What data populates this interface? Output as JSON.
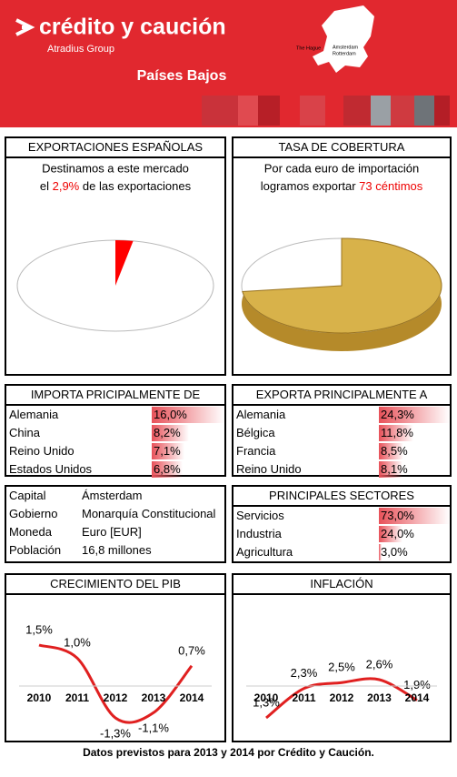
{
  "header": {
    "brand": "crédito y caución",
    "group": "Atradius Group",
    "country": "Países Bajos",
    "map_labels": [
      "The Hague",
      "Amsterdam",
      "Rotterdam"
    ]
  },
  "chart_data": [
    {
      "type": "pie",
      "title": "EXPORTACIONES ESPAÑOLAS",
      "text": [
        "Destinamos a este mercado",
        "el",
        "de las exportaciones"
      ],
      "values": [
        2.9
      ],
      "value_labels": [
        "2,9%"
      ],
      "color": "#ff0000"
    },
    {
      "type": "pie",
      "title": "TASA DE COBERTURA",
      "text": [
        "Por cada euro de importación",
        "logramos exportar"
      ],
      "values": [
        73
      ],
      "value_labels": [
        "73 céntimos"
      ],
      "color": "#d8b24a"
    },
    {
      "type": "bar",
      "title": "IMPORTA PRICIPALMENTE DE",
      "categories": [
        "Alemania",
        "China",
        "Reino Unido",
        "Estados Unidos"
      ],
      "values": [
        16.0,
        8.2,
        7.1,
        6.8
      ],
      "value_labels": [
        "16,0%",
        "8,2%",
        "7,1%",
        "6,8%"
      ],
      "color": "#e8525a"
    },
    {
      "type": "bar",
      "title": "EXPORTA PRINCIPALMENTE A",
      "categories": [
        "Alemania",
        "Bélgica",
        "Francia",
        "Reino Unido"
      ],
      "values": [
        24.3,
        11.8,
        8.5,
        8.1
      ],
      "value_labels": [
        "24,3%",
        "11,8%",
        "8,5%",
        "8,1%"
      ],
      "color": "#e8525a"
    },
    {
      "type": "bar",
      "title": "PRINCIPALES SECTORES",
      "categories": [
        "Servicios",
        "Industria",
        "Agricultura"
      ],
      "values": [
        73.0,
        24.0,
        3.0
      ],
      "value_labels": [
        "73,0%",
        "24,0%",
        "3,0%"
      ],
      "color": "#e8525a"
    },
    {
      "type": "line",
      "title": "CRECIMIENTO DEL PIB",
      "categories": [
        "2010",
        "2011",
        "2012",
        "2013",
        "2014"
      ],
      "values": [
        1.5,
        1.0,
        -1.3,
        -1.1,
        0.7
      ],
      "value_labels": [
        "1,5%",
        "1,0%",
        "-1,3%",
        "-1,1%",
        "0,7%"
      ],
      "color": "#e02020"
    },
    {
      "type": "line",
      "title": "INFLACIÓN",
      "categories": [
        "2010",
        "2011",
        "2012",
        "2013",
        "2014"
      ],
      "values": [
        1.3,
        2.3,
        2.5,
        2.6,
        1.9
      ],
      "value_labels": [
        "1,3%",
        "2,3%",
        "2,5%",
        "2,6%",
        "1,9%"
      ],
      "color": "#e02020"
    }
  ],
  "info": {
    "rows": [
      [
        "Capital",
        "Ámsterdam"
      ],
      [
        "Gobierno",
        "Monarquía Constitucional"
      ],
      [
        "Moneda",
        "Euro [EUR]"
      ],
      [
        "Población",
        "16,8 millones"
      ]
    ]
  },
  "footer": "Datos previstos para 2013 y 2014 por Crédito y Caución."
}
